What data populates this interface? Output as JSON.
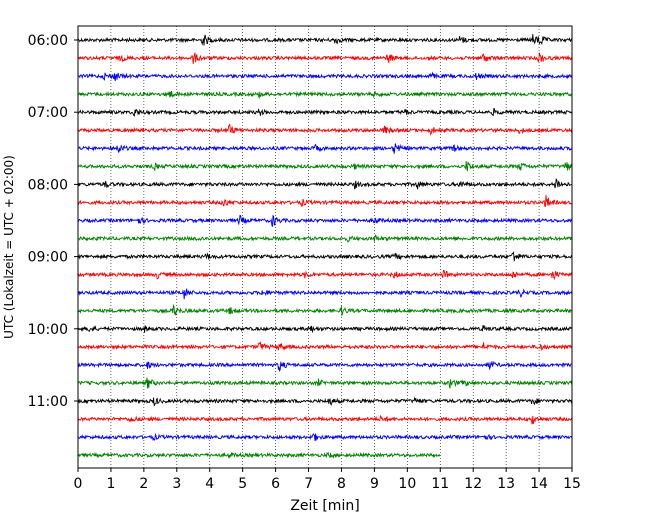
{
  "chart_data": {
    "type": "line",
    "title": "",
    "xlabel": "Zeit  [min]",
    "ylabel": "UTC (Lokalzeit = UTC + 02:00)",
    "xlim": [
      0,
      15
    ],
    "x_ticks": [
      "0",
      "1",
      "2",
      "3",
      "4",
      "5",
      "6",
      "7",
      "8",
      "9",
      "10",
      "11",
      "12",
      "13",
      "14",
      "15"
    ],
    "grid": "vertical dotted",
    "y_tick_labels": [
      "06:00",
      "07:00",
      "08:00",
      "09:00",
      "10:00",
      "11:00"
    ],
    "trace_colors": [
      "#000000",
      "#ff0000",
      "#0000ff",
      "#008000"
    ],
    "trace_start": "06:00",
    "trace_interval_min": 15,
    "trace_count": 24,
    "last_trace_end_min": 11.0,
    "events": [
      [
        [
          3.8,
          7
        ],
        [
          7.8,
          4
        ],
        [
          11.6,
          4
        ],
        [
          13.8,
          5
        ],
        [
          14.0,
          6
        ]
      ],
      [
        [
          1.3,
          3
        ],
        [
          3.5,
          6
        ],
        [
          9.4,
          5
        ],
        [
          12.3,
          5
        ],
        [
          14.0,
          6
        ]
      ],
      [
        [
          1.1,
          5
        ],
        [
          0.8,
          3
        ],
        [
          10.7,
          3
        ],
        [
          12.1,
          3
        ]
      ],
      [
        [
          2.7,
          6
        ],
        [
          5.5,
          2
        ],
        [
          9.0,
          2
        ]
      ],
      [
        [
          1.7,
          4
        ],
        [
          5.5,
          3
        ],
        [
          9.9,
          3
        ],
        [
          12.6,
          3
        ]
      ],
      [
        [
          4.6,
          6
        ],
        [
          9.3,
          4
        ],
        [
          10.7,
          4
        ],
        [
          13.4,
          2
        ]
      ],
      [
        [
          1.2,
          6
        ],
        [
          7.2,
          3
        ],
        [
          9.6,
          6
        ],
        [
          11.4,
          3
        ]
      ],
      [
        [
          2.3,
          3
        ],
        [
          8.4,
          2
        ],
        [
          11.8,
          6
        ],
        [
          13.4,
          5
        ],
        [
          14.8,
          6
        ]
      ],
      [
        [
          0.8,
          3
        ],
        [
          8.4,
          3
        ],
        [
          10.3,
          4
        ],
        [
          11.6,
          4
        ],
        [
          14.5,
          7
        ]
      ],
      [
        [
          4.4,
          5
        ],
        [
          6.8,
          3
        ],
        [
          14.2,
          7
        ]
      ],
      [
        [
          1.8,
          4
        ],
        [
          4.9,
          5
        ],
        [
          5.9,
          6
        ],
        [
          9.0,
          3
        ]
      ],
      [
        [
          3.6,
          2
        ],
        [
          8.2,
          2
        ],
        [
          9.0,
          3
        ]
      ],
      [
        [
          3.9,
          3
        ],
        [
          9.6,
          3
        ],
        [
          13.2,
          7
        ]
      ],
      [
        [
          2.4,
          3
        ],
        [
          6.9,
          3
        ],
        [
          9.6,
          3
        ],
        [
          11.1,
          4
        ],
        [
          13.2,
          4
        ],
        [
          14.4,
          6
        ]
      ],
      [
        [
          3.2,
          7
        ],
        [
          5.6,
          3
        ],
        [
          13.4,
          4
        ]
      ],
      [
        [
          2.9,
          6
        ],
        [
          4.6,
          3
        ],
        [
          8.0,
          4
        ]
      ],
      [
        [
          0.3,
          3
        ],
        [
          2.0,
          3
        ],
        [
          7.0,
          4
        ],
        [
          12.3,
          3
        ]
      ],
      [
        [
          5.5,
          5
        ],
        [
          6.1,
          4
        ],
        [
          12.3,
          4
        ],
        [
          14.0,
          4
        ]
      ],
      [
        [
          2.1,
          3
        ],
        [
          6.1,
          6
        ],
        [
          12.5,
          4
        ]
      ],
      [
        [
          2.1,
          6
        ],
        [
          7.3,
          3
        ],
        [
          11.3,
          5
        ],
        [
          11.7,
          3
        ]
      ],
      [
        [
          2.3,
          4
        ],
        [
          7.6,
          5
        ],
        [
          10.2,
          3
        ],
        [
          13.8,
          4
        ]
      ],
      [
        [
          1.6,
          3
        ],
        [
          9.2,
          3
        ],
        [
          13.8,
          5
        ]
      ],
      [
        [
          2.3,
          2
        ],
        [
          7.1,
          6
        ],
        [
          12.3,
          3
        ]
      ],
      [
        [
          4.6,
          2
        ],
        [
          7.6,
          2
        ]
      ]
    ]
  }
}
